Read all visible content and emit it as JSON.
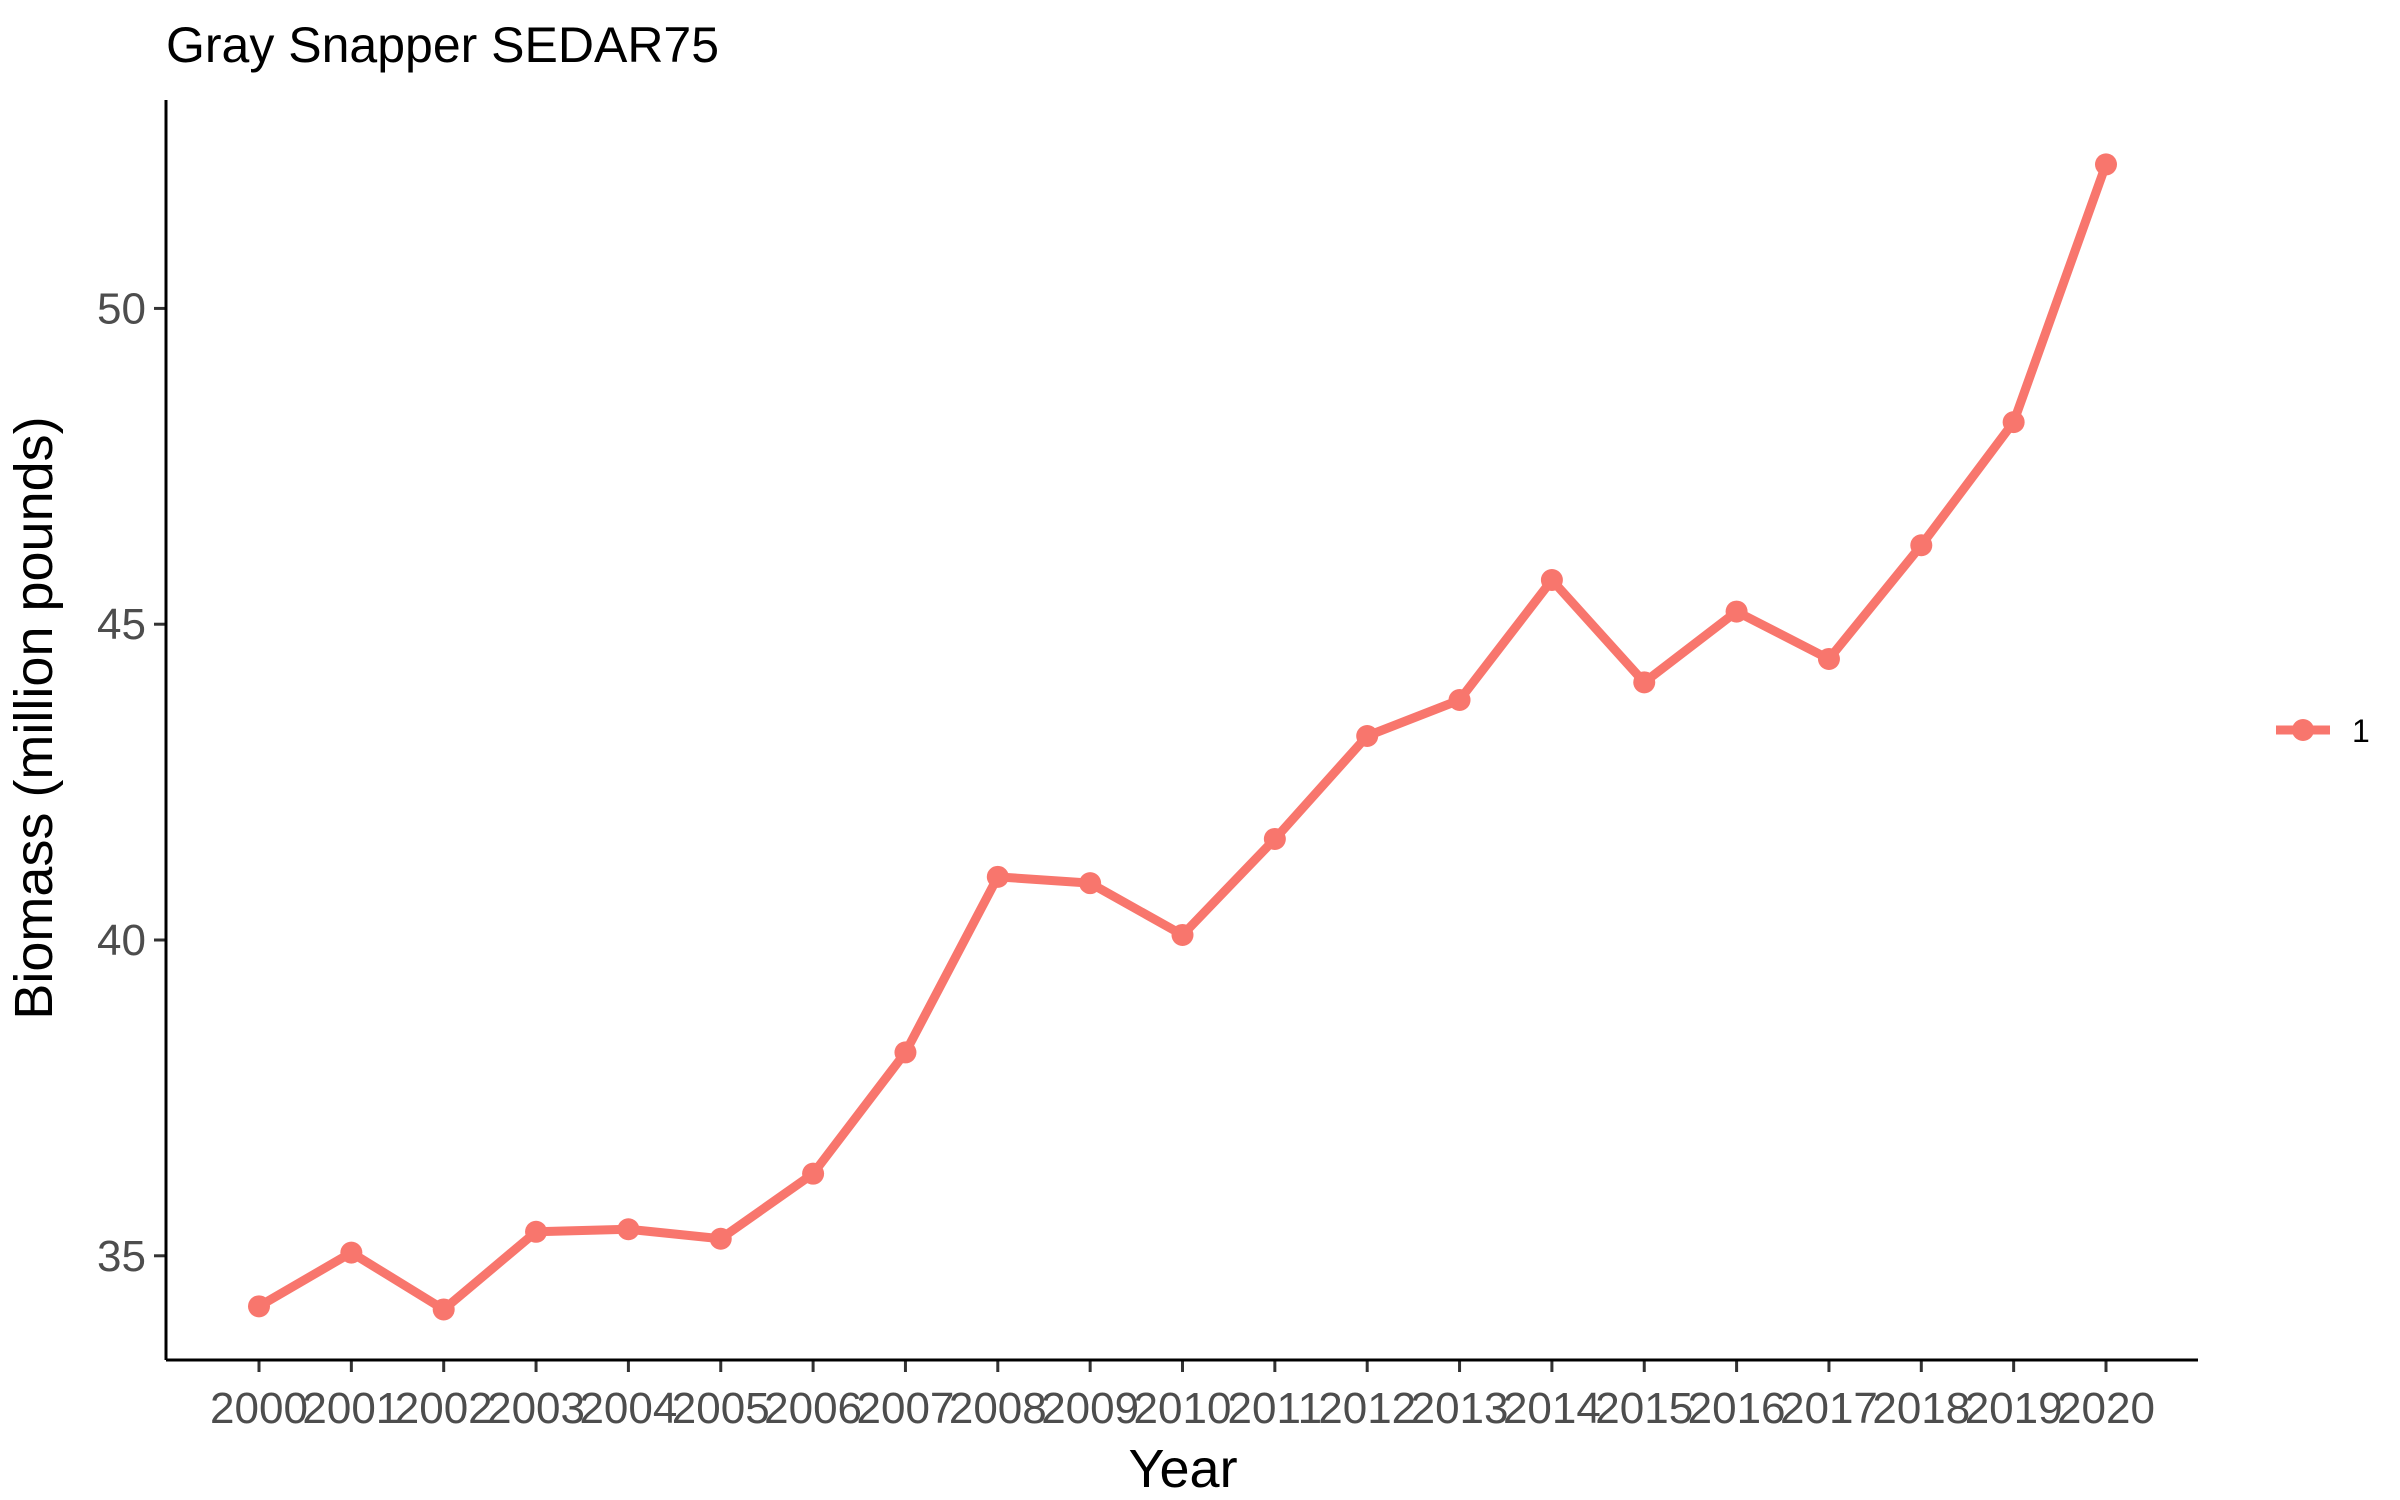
{
  "chart_data": {
    "type": "line",
    "title": "Gray Snapper SEDAR75",
    "xlabel": "Year",
    "ylabel": "Biomass (million pounds)",
    "x": [
      "2000",
      "2001",
      "2002",
      "2003",
      "2004",
      "2005",
      "2006",
      "2007",
      "2008",
      "2009",
      "2010",
      "2011",
      "2012",
      "2013",
      "2014",
      "2015",
      "2016",
      "2017",
      "2018",
      "2019",
      "2020"
    ],
    "series": [
      {
        "name": "1",
        "color": "#F8766D",
        "values": [
          34.2,
          35.05,
          34.15,
          35.38,
          35.42,
          35.27,
          36.3,
          38.22,
          41.0,
          40.9,
          40.08,
          41.6,
          43.23,
          43.8,
          45.7,
          44.08,
          45.2,
          44.45,
          46.25,
          48.2,
          52.28
        ]
      }
    ],
    "ylim": [
      33.35,
      53.3
    ],
    "yticks": [
      35,
      40,
      45,
      50
    ],
    "grid": false,
    "legend": "right"
  }
}
